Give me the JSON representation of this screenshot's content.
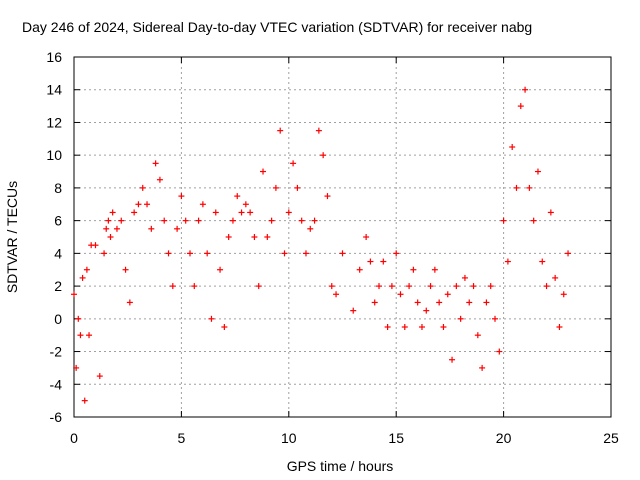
{
  "chart_data": {
    "type": "scatter",
    "title": "Day 246 of 2024, Sidereal Day-to-day VTEC variation (SDTVAR) for receiver nabg",
    "xlabel": "GPS time / hours",
    "ylabel": "SDTVAR / TECUs",
    "xlim": [
      0,
      25
    ],
    "ylim": [
      -6,
      16
    ],
    "xticks": [
      0,
      5,
      10,
      15,
      20,
      25
    ],
    "yticks": [
      -6,
      -4,
      -2,
      0,
      2,
      4,
      6,
      8,
      10,
      12,
      14,
      16
    ],
    "grid": true,
    "marker": "+",
    "color": "#ff0000",
    "series": [
      {
        "name": "SDTVAR",
        "x": [
          0.0,
          0.1,
          0.2,
          0.3,
          0.4,
          0.5,
          0.6,
          0.7,
          0.8,
          1.0,
          1.2,
          1.4,
          1.5,
          1.6,
          1.7,
          1.8,
          2.0,
          2.2,
          2.4,
          2.6,
          2.8,
          3.0,
          3.2,
          3.4,
          3.6,
          3.8,
          4.0,
          4.2,
          4.4,
          4.6,
          4.8,
          5.0,
          5.2,
          5.4,
          5.6,
          5.8,
          6.0,
          6.2,
          6.4,
          6.6,
          6.8,
          7.0,
          7.2,
          7.4,
          7.6,
          7.8,
          8.0,
          8.2,
          8.4,
          8.6,
          8.8,
          9.0,
          9.2,
          9.4,
          9.6,
          9.8,
          10.0,
          10.2,
          10.4,
          10.6,
          10.8,
          11.0,
          11.2,
          11.4,
          11.6,
          11.8,
          12.0,
          12.2,
          12.5,
          13.0,
          13.3,
          13.6,
          13.8,
          14.0,
          14.2,
          14.4,
          14.6,
          14.8,
          15.0,
          15.2,
          15.4,
          15.6,
          15.8,
          16.0,
          16.2,
          16.4,
          16.6,
          16.8,
          17.0,
          17.2,
          17.4,
          17.6,
          17.8,
          18.0,
          18.2,
          18.4,
          18.6,
          18.8,
          19.0,
          19.2,
          19.4,
          19.6,
          19.8,
          20.0,
          20.2,
          20.4,
          20.6,
          20.8,
          21.0,
          21.2,
          21.4,
          21.6,
          21.8,
          22.0,
          22.2,
          22.4,
          22.6,
          22.8,
          23.0
        ],
        "y": [
          1.5,
          -3.0,
          0.0,
          -1.0,
          2.5,
          -5.0,
          3.0,
          -1.0,
          4.5,
          4.5,
          -3.5,
          4.0,
          5.5,
          6.0,
          5.0,
          6.5,
          5.5,
          6.0,
          3.0,
          1.0,
          6.5,
          7.0,
          8.0,
          7.0,
          5.5,
          9.5,
          8.5,
          6.0,
          4.0,
          2.0,
          5.5,
          7.5,
          6.0,
          4.0,
          2.0,
          6.0,
          7.0,
          4.0,
          0.0,
          6.5,
          3.0,
          -0.5,
          5.0,
          6.0,
          7.5,
          6.5,
          7.0,
          6.5,
          5.0,
          2.0,
          9.0,
          5.0,
          6.0,
          8.0,
          11.5,
          4.0,
          6.5,
          9.5,
          8.0,
          6.0,
          4.0,
          5.5,
          6.0,
          11.5,
          10.0,
          7.5,
          2.0,
          1.5,
          4.0,
          0.5,
          3.0,
          5.0,
          3.5,
          1.0,
          2.0,
          3.5,
          -0.5,
          2.0,
          4.0,
          1.5,
          -0.5,
          2.0,
          3.0,
          1.0,
          -0.5,
          0.5,
          2.0,
          3.0,
          1.0,
          -0.5,
          1.5,
          -2.5,
          2.0,
          0.0,
          2.5,
          1.0,
          2.0,
          -1.0,
          -3.0,
          1.0,
          2.0,
          0.0,
          -2.0,
          6.0,
          3.5,
          10.5,
          8.0,
          13.0,
          14.0,
          8.0,
          6.0,
          9.0,
          3.5,
          2.0,
          6.5,
          2.5,
          -0.5,
          1.5,
          4.0
        ]
      }
    ]
  }
}
